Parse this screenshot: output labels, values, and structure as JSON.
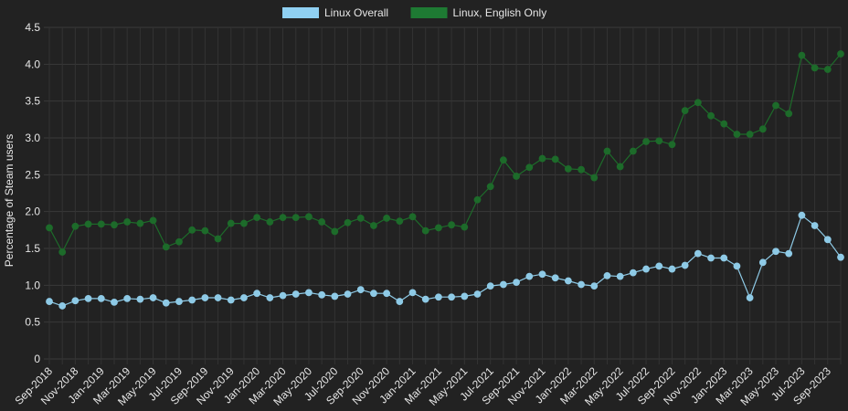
{
  "chart_data": {
    "type": "line",
    "title": "",
    "xlabel": "",
    "ylabel": "Percentage of Steam users",
    "ylim": [
      0,
      4.5
    ],
    "yticks": [
      "0",
      "0.5",
      "1.0",
      "1.5",
      "2.0",
      "2.5",
      "3.0",
      "3.5",
      "4.0",
      "4.5"
    ],
    "grid": true,
    "legend_position": "top-center",
    "x": [
      "Sep-2018",
      "Oct-2018",
      "Nov-2018",
      "Dec-2018",
      "Jan-2019",
      "Feb-2019",
      "Mar-2019",
      "Apr-2019",
      "May-2019",
      "Jun-2019",
      "Jul-2019",
      "Aug-2019",
      "Sep-2019",
      "Oct-2019",
      "Nov-2019",
      "Dec-2019",
      "Jan-2020",
      "Feb-2020",
      "Mar-2020",
      "Apr-2020",
      "May-2020",
      "Jun-2020",
      "Jul-2020",
      "Aug-2020",
      "Sep-2020",
      "Oct-2020",
      "Nov-2020",
      "Dec-2020",
      "Jan-2021",
      "Feb-2021",
      "Mar-2021",
      "Apr-2021",
      "May-2021",
      "Jun-2021",
      "Jul-2021",
      "Aug-2021",
      "Sep-2021",
      "Oct-2021",
      "Nov-2021",
      "Dec-2021",
      "Jan-2022",
      "Feb-2022",
      "Mar-2022",
      "Apr-2022",
      "May-2022",
      "Jun-2022",
      "Jul-2022",
      "Aug-2022",
      "Sep-2022",
      "Oct-2022",
      "Nov-2022",
      "Dec-2022",
      "Jan-2023",
      "Feb-2023",
      "Mar-2023",
      "Apr-2023",
      "May-2023",
      "Jun-2023",
      "Jul-2023",
      "Aug-2023",
      "Sep-2023",
      "Oct-2023"
    ],
    "xtick_labels": [
      "Sep-2018",
      "",
      "Nov-2018",
      "",
      "Jan-2019",
      "",
      "Mar-2019",
      "",
      "May-2019",
      "",
      "Jul-2019",
      "",
      "Sep-2019",
      "",
      "Nov-2019",
      "",
      "Jan-2020",
      "",
      "Mar-2020",
      "",
      "May-2020",
      "",
      "Jul-2020",
      "",
      "Sep-2020",
      "",
      "Nov-2020",
      "",
      "Jan-2021",
      "",
      "Mar-2021",
      "",
      "May-2021",
      "",
      "Jul-2021",
      "",
      "Sep-2021",
      "",
      "Nov-2021",
      "",
      "Jan-2022",
      "",
      "Mar-2022",
      "",
      "May-2022",
      "",
      "Jul-2022",
      "",
      "Sep-2022",
      "",
      "Nov-2022",
      "",
      "Jan-2023",
      "",
      "Mar-2023",
      "",
      "May-2023",
      "",
      "Jul-2023",
      "",
      "Sep-2023",
      ""
    ],
    "series": [
      {
        "name": "Linux Overall",
        "color": "#8ecae6",
        "legend_color": "#8fd0f2",
        "values": [
          0.78,
          0.72,
          0.79,
          0.82,
          0.82,
          0.77,
          0.82,
          0.81,
          0.83,
          0.76,
          0.78,
          0.8,
          0.83,
          0.83,
          0.8,
          0.83,
          0.89,
          0.83,
          0.86,
          0.88,
          0.9,
          0.87,
          0.85,
          0.88,
          0.94,
          0.89,
          0.89,
          0.78,
          0.9,
          0.81,
          0.84,
          0.84,
          0.85,
          0.88,
          0.99,
          1.01,
          1.04,
          1.12,
          1.15,
          1.1,
          1.06,
          1.01,
          0.99,
          1.13,
          1.12,
          1.17,
          1.22,
          1.26,
          1.22,
          1.27,
          1.43,
          1.37,
          1.37,
          1.26,
          0.83,
          1.31,
          1.46,
          1.43,
          1.95,
          1.81,
          1.62,
          1.38
        ]
      },
      {
        "name": "Linux, English Only",
        "color": "#1d6b2a",
        "legend_color": "#1e7a33",
        "values": [
          1.78,
          1.45,
          1.8,
          1.83,
          1.83,
          1.82,
          1.86,
          1.84,
          1.88,
          1.52,
          1.59,
          1.75,
          1.74,
          1.63,
          1.84,
          1.84,
          1.92,
          1.86,
          1.92,
          1.92,
          1.93,
          1.86,
          1.73,
          1.85,
          1.91,
          1.81,
          1.91,
          1.87,
          1.93,
          1.74,
          1.78,
          1.82,
          1.79,
          2.16,
          2.34,
          2.7,
          2.48,
          2.6,
          2.72,
          2.71,
          2.58,
          2.57,
          2.46,
          2.82,
          2.61,
          2.82,
          2.95,
          2.96,
          2.91,
          3.37,
          3.48,
          3.3,
          3.19,
          3.05,
          3.05,
          3.12,
          3.44,
          3.33,
          4.12,
          3.95,
          3.93,
          4.14
        ]
      }
    ]
  }
}
